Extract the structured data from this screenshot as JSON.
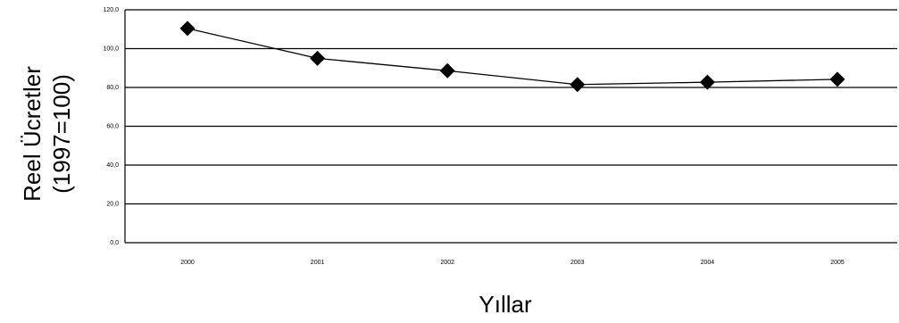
{
  "chart_data": {
    "type": "line",
    "title": "",
    "xlabel": "Yıllar",
    "ylabel_lines": [
      "Reel Ücretler",
      "(1997=100)"
    ],
    "ylim": [
      0,
      120
    ],
    "yticks": [
      0,
      20,
      40,
      60,
      80,
      100,
      120
    ],
    "ytick_labels": [
      "0,0",
      "20,0",
      "40,0",
      "60,0",
      "80,0",
      "100,0",
      "120,0"
    ],
    "categories": [
      "2000",
      "2001",
      "2002",
      "2003",
      "2004",
      "2005"
    ],
    "series": [
      {
        "values": [
          110.4,
          95.0,
          88.6,
          81.5,
          82.7,
          84.2
        ]
      }
    ],
    "grid": "horizontal",
    "legend": "none",
    "marker": "diamond",
    "colors": {
      "line": "#000000",
      "grid": "#000000",
      "background": "#ffffff"
    }
  }
}
